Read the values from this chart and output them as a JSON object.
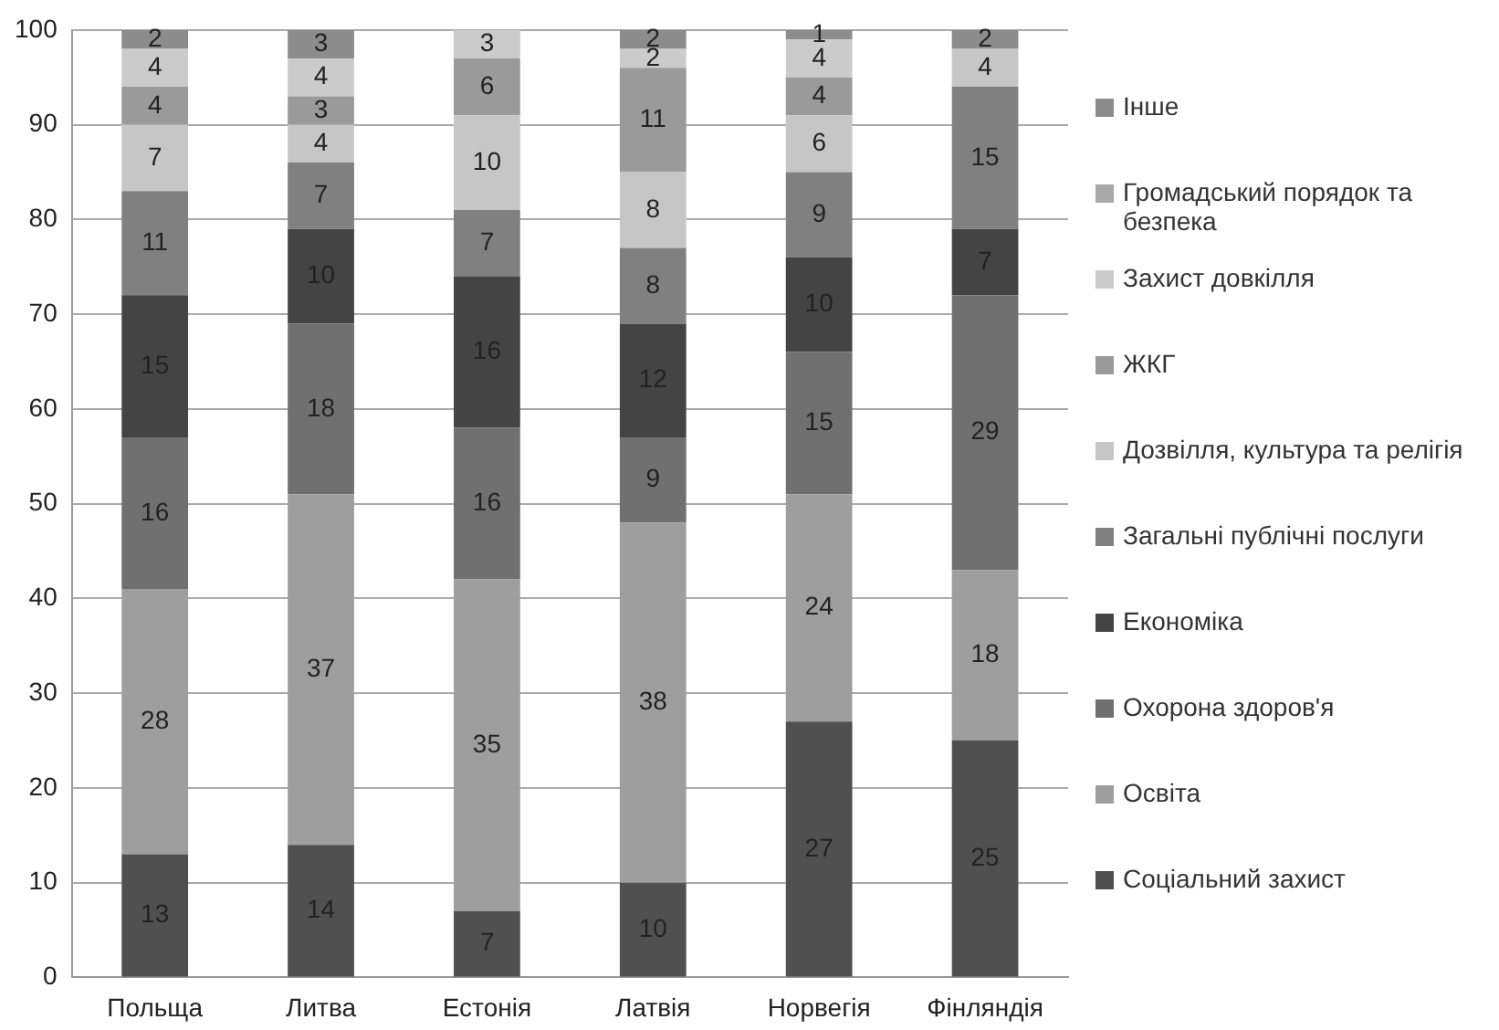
{
  "chart_data": {
    "type": "bar",
    "stacked": true,
    "categories": [
      "Польща",
      "Литва",
      "Естонія",
      "Латвія",
      "Норвегія",
      "Фінляндія"
    ],
    "series": [
      {
        "name": "Соціальний захист",
        "color": "#505050",
        "values": [
          13,
          14,
          7,
          10,
          27,
          25
        ]
      },
      {
        "name": "Освіта",
        "color": "#9e9e9e",
        "values": [
          28,
          37,
          35,
          38,
          24,
          18
        ]
      },
      {
        "name": "Охорона здоров'я",
        "color": "#707070",
        "values": [
          16,
          18,
          16,
          9,
          15,
          29
        ]
      },
      {
        "name": "Економіка",
        "color": "#444444",
        "values": [
          15,
          10,
          16,
          12,
          10,
          7
        ]
      },
      {
        "name": "Загальні публічні послуги",
        "color": "#808080",
        "values": [
          11,
          7,
          7,
          8,
          9,
          15
        ]
      },
      {
        "name": "Дозвілля, культура та релігія",
        "color": "#c6c6c6",
        "values": [
          7,
          4,
          10,
          8,
          6,
          4
        ]
      },
      {
        "name": "ЖКГ",
        "color": "#9a9a9a",
        "values": [
          4,
          3,
          6,
          11,
          4,
          null
        ]
      },
      {
        "name": "Захист довкілля",
        "color": "#cbcbcb",
        "values": [
          4,
          4,
          3,
          2,
          4,
          null
        ]
      },
      {
        "name": "Громадський порядок та безпека",
        "color": "#a8a8a8",
        "values": [
          null,
          null,
          null,
          null,
          null,
          null
        ]
      },
      {
        "name": "Інше",
        "color": "#8c8c8c",
        "values": [
          2,
          3,
          null,
          2,
          1,
          2
        ]
      }
    ],
    "ylim": [
      0,
      100
    ],
    "yticks": [
      0,
      10,
      20,
      30,
      40,
      50,
      60,
      70,
      80,
      90,
      100
    ],
    "grid": "y",
    "legend": "right",
    "data_labels": true
  }
}
